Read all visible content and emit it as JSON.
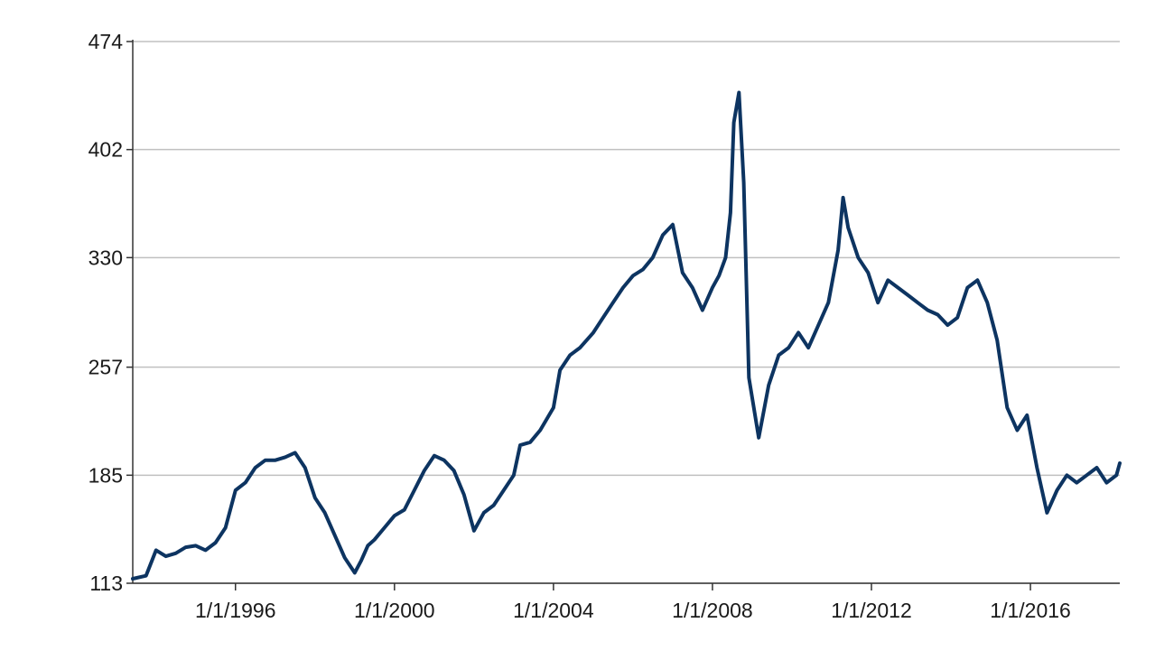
{
  "colors": {
    "line": "#0d3461",
    "grid": "#c0c0c0",
    "axis": "#333333"
  },
  "chart_data": {
    "type": "line",
    "title": "",
    "xlabel": "",
    "ylabel": "",
    "grid": "horizontal",
    "legend": "none",
    "xlim": [
      "1993-06-01",
      "2018-04-01"
    ],
    "ylim": [
      113,
      474
    ],
    "y_ticks": [
      113,
      185,
      257,
      330,
      402,
      474
    ],
    "x_ticks": [
      {
        "date": "1996-01-01",
        "label": "1/1/1996"
      },
      {
        "date": "2000-01-01",
        "label": "1/1/2000"
      },
      {
        "date": "2004-01-01",
        "label": "1/1/2004"
      },
      {
        "date": "2008-01-01",
        "label": "1/1/2008"
      },
      {
        "date": "2012-01-01",
        "label": "1/1/2012"
      },
      {
        "date": "2016-01-01",
        "label": "1/1/2016"
      }
    ],
    "series": [
      {
        "name": "",
        "x": [
          "1993-06-01",
          "1993-10-01",
          "1994-01-01",
          "1994-04-01",
          "1994-07-01",
          "1994-10-01",
          "1995-01-01",
          "1995-04-01",
          "1995-07-01",
          "1995-10-01",
          "1996-01-01",
          "1996-04-01",
          "1996-07-01",
          "1996-10-01",
          "1997-01-01",
          "1997-04-01",
          "1997-07-01",
          "1997-10-01",
          "1998-01-01",
          "1998-04-01",
          "1998-07-01",
          "1998-10-01",
          "1999-01-01",
          "1999-03-01",
          "1999-05-01",
          "1999-07-01",
          "1999-10-01",
          "2000-01-01",
          "2000-04-01",
          "2000-07-01",
          "2000-10-01",
          "2001-01-01",
          "2001-04-01",
          "2001-07-01",
          "2001-10-01",
          "2002-01-01",
          "2002-04-01",
          "2002-07-01",
          "2002-10-01",
          "2003-01-01",
          "2003-03-01",
          "2003-06-01",
          "2003-09-01",
          "2004-01-01",
          "2004-03-01",
          "2004-06-01",
          "2004-09-01",
          "2005-01-01",
          "2005-04-01",
          "2005-07-01",
          "2005-10-01",
          "2006-01-01",
          "2006-04-01",
          "2006-07-01",
          "2006-10-01",
          "2007-01-01",
          "2007-04-01",
          "2007-07-01",
          "2007-10-01",
          "2008-01-01",
          "2008-03-01",
          "2008-05-01",
          "2008-06-15",
          "2008-07-15",
          "2008-09-01",
          "2008-10-15",
          "2008-12-01",
          "2009-03-01",
          "2009-06-01",
          "2009-09-01",
          "2009-12-01",
          "2010-03-01",
          "2010-06-01",
          "2010-09-01",
          "2010-12-01",
          "2011-03-01",
          "2011-04-15",
          "2011-06-01",
          "2011-09-01",
          "2011-12-01",
          "2012-03-01",
          "2012-06-01",
          "2012-09-01",
          "2012-12-01",
          "2013-03-01",
          "2013-06-01",
          "2013-09-01",
          "2013-12-01",
          "2014-03-01",
          "2014-06-01",
          "2014-09-01",
          "2014-12-01",
          "2015-03-01",
          "2015-06-01",
          "2015-09-01",
          "2015-12-01",
          "2016-03-01",
          "2016-06-01",
          "2016-09-01",
          "2016-12-01",
          "2017-03-01",
          "2017-06-01",
          "2017-09-01",
          "2017-12-01",
          "2018-03-01",
          "2018-04-01"
        ],
        "y": [
          116,
          118,
          135,
          131,
          133,
          137,
          138,
          135,
          140,
          150,
          175,
          180,
          190,
          195,
          195,
          197,
          200,
          190,
          170,
          160,
          145,
          130,
          120,
          128,
          138,
          142,
          150,
          158,
          162,
          175,
          188,
          198,
          195,
          188,
          172,
          148,
          160,
          165,
          175,
          185,
          205,
          207,
          215,
          230,
          255,
          265,
          270,
          280,
          290,
          300,
          310,
          318,
          322,
          330,
          345,
          352,
          320,
          310,
          295,
          310,
          318,
          330,
          360,
          420,
          440,
          380,
          250,
          210,
          245,
          265,
          270,
          280,
          270,
          285,
          300,
          335,
          370,
          350,
          330,
          320,
          300,
          315,
          310,
          305,
          300,
          295,
          292,
          285,
          290,
          310,
          315,
          300,
          275,
          230,
          215,
          225,
          190,
          160,
          175,
          185,
          180,
          185,
          190,
          180,
          185,
          193
        ]
      }
    ]
  }
}
